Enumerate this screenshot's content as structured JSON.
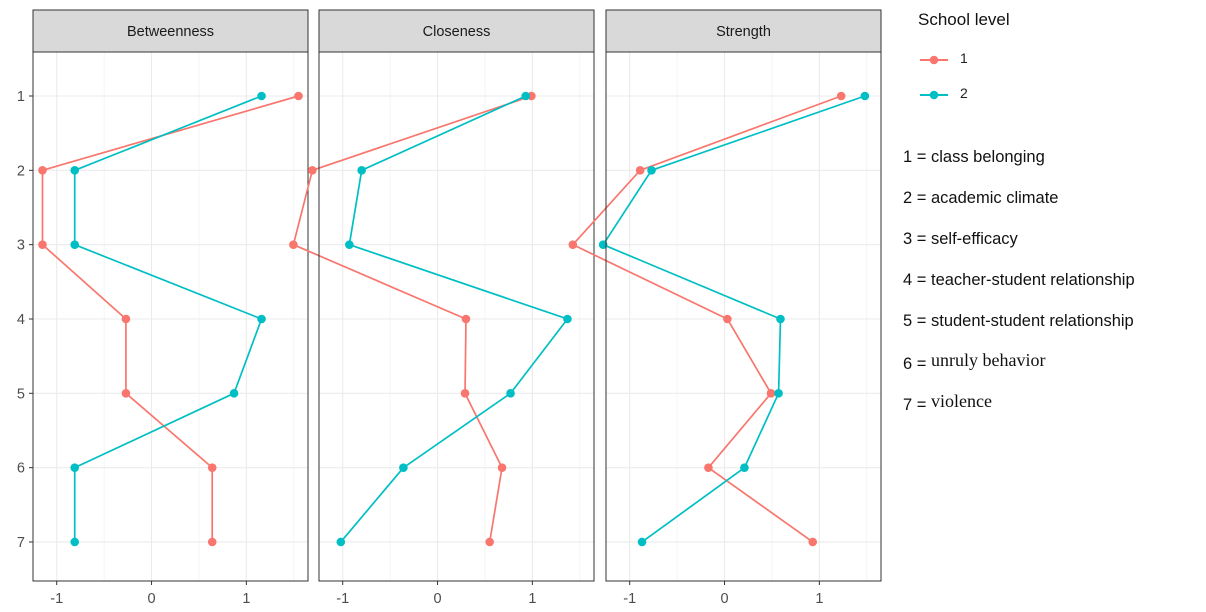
{
  "chart_data": {
    "type": "line",
    "facets": [
      "Betweenness",
      "Closeness",
      "Strength"
    ],
    "y_categories": [
      "1",
      "2",
      "3",
      "4",
      "5",
      "6",
      "7"
    ],
    "x_ticks": [
      "-1",
      "0",
      "1"
    ],
    "xlim": [
      -1.25,
      1.65
    ],
    "grid": true,
    "legend": {
      "title": "School level",
      "placement": "right",
      "entries": [
        {
          "label": "1",
          "color": "#F8766D"
        },
        {
          "label": "2",
          "color": "#00BFC4"
        }
      ]
    },
    "series": [
      {
        "name": "1",
        "color": "#F8766D",
        "values": {
          "Betweenness": [
            1.55,
            -1.15,
            -1.15,
            -0.27,
            -0.27,
            0.64,
            0.64
          ],
          "Closeness": [
            0.99,
            -1.32,
            -1.52,
            0.3,
            0.29,
            0.68,
            0.55
          ],
          "Strength": [
            1.23,
            -0.89,
            -1.6,
            0.03,
            0.49,
            -0.17,
            0.93
          ]
        }
      },
      {
        "name": "2",
        "color": "#00BFC4",
        "values": {
          "Betweenness": [
            1.16,
            -0.81,
            -0.81,
            1.16,
            0.87,
            -0.81,
            -0.81
          ],
          "Closeness": [
            0.93,
            -0.8,
            -0.93,
            1.37,
            0.77,
            -0.36,
            -1.02
          ],
          "Strength": [
            1.48,
            -0.77,
            -1.28,
            0.59,
            0.57,
            0.21,
            -0.87
          ]
        }
      }
    ],
    "annotations": {
      "items": [
        {
          "num": "1 =",
          "text": "class belonging",
          "serif": false
        },
        {
          "num": "2 =",
          "text": "academic climate",
          "serif": false
        },
        {
          "num": "3 =",
          "text": "self-efficacy",
          "serif": false
        },
        {
          "num": "4 =",
          "text": "teacher-student relationship",
          "serif": false
        },
        {
          "num": "5 =",
          "text": "student-student relationship",
          "serif": false
        },
        {
          "num": "6 =",
          "text": "unruly behavior",
          "serif": true
        },
        {
          "num": "7 =",
          "text": "violence",
          "serif": true
        }
      ]
    }
  }
}
